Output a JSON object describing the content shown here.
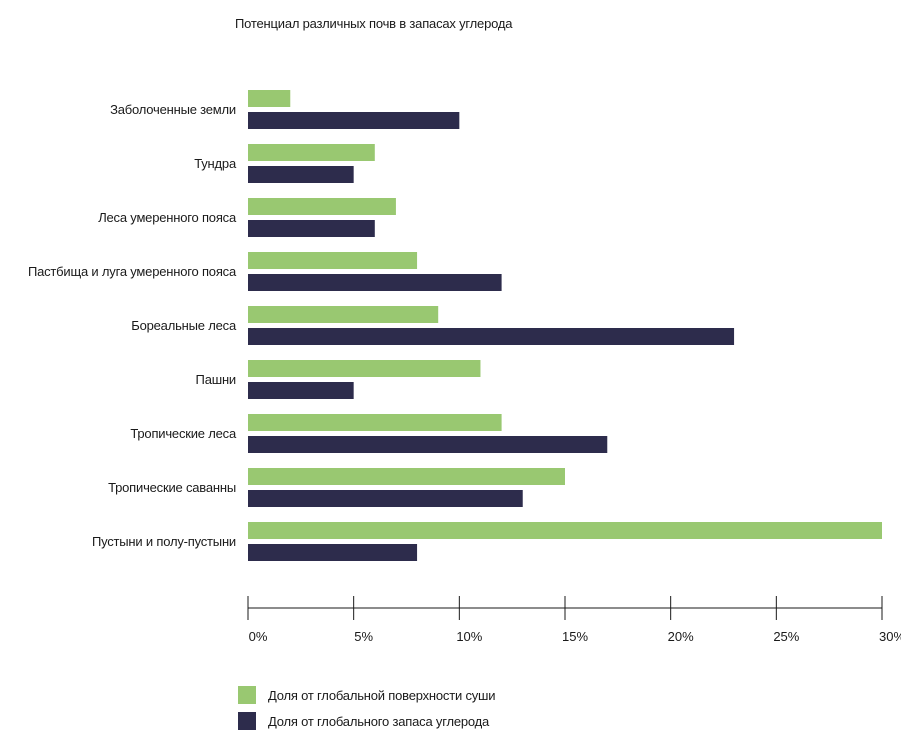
{
  "colors": {
    "land": "#99c871",
    "carbon": "#2d2c4c",
    "axis": "#1a1a1a"
  },
  "chart_data": {
    "type": "bar",
    "orientation": "horizontal",
    "title": "Потенциал различных почв в запасах углерода",
    "xlabel": "",
    "ylabel": "",
    "xlim": [
      0,
      30
    ],
    "x_ticks": [
      0,
      5,
      10,
      15,
      20,
      25,
      30
    ],
    "x_tick_labels": [
      "0%",
      "5%",
      "10%",
      "15%",
      "20%",
      "25%",
      "30%"
    ],
    "grid": false,
    "legend_position": "bottom-left",
    "categories": [
      "Заболоченные земли",
      "Тундра",
      "Леса умеренного пояса",
      "Пастбища и луга умеренного пояса",
      "Бореальные леса",
      "Пашни",
      "Тропические леса",
      "Тропические саванны",
      "Пустыни и полу-пустыни"
    ],
    "series": [
      {
        "name": "Доля от глобальной поверхности суши",
        "values": [
          2,
          6,
          7,
          8,
          9,
          11,
          12,
          15,
          30
        ]
      },
      {
        "name": "Доля от глобального запаса углерода",
        "values": [
          10,
          5,
          6,
          12,
          23,
          5,
          17,
          13,
          8
        ]
      }
    ]
  }
}
